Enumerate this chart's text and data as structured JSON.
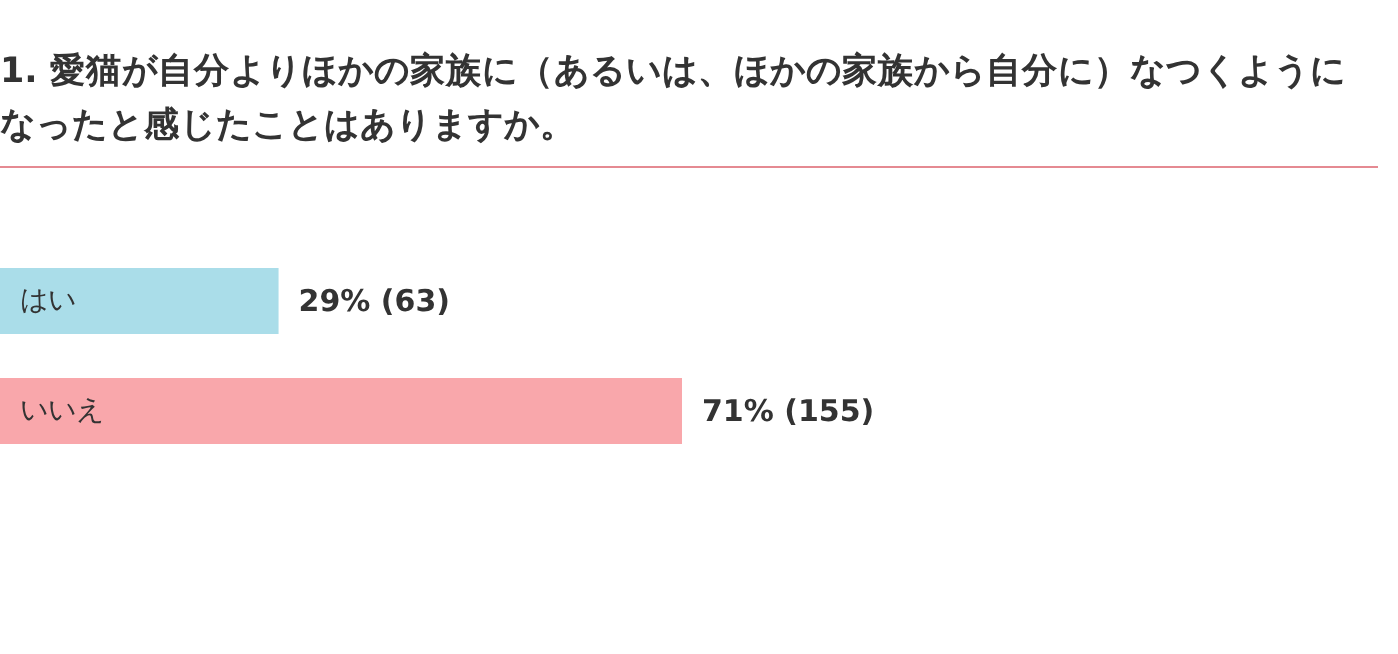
{
  "chart_data": {
    "type": "bar",
    "orientation": "horizontal",
    "title": "1. 愛猫が自分よりほかの家族に（あるいは、ほかの家族から自分に）なつくようになったと感じたことはありますか。",
    "categories": [
      "はい",
      "いいえ"
    ],
    "values": [
      29,
      71
    ],
    "colors": [
      "#aadde9",
      "#f9a7ab"
    ],
    "value_labels": [
      "29% (63)",
      "71% (155)"
    ]
  }
}
